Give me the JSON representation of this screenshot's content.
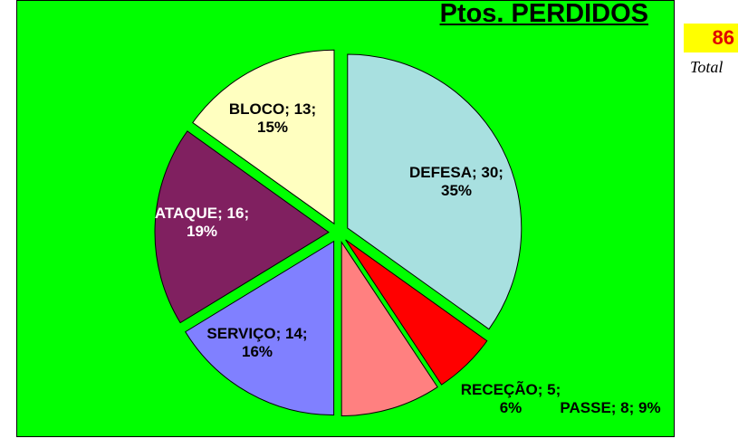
{
  "chart_data": {
    "type": "pie",
    "title": "Ptos. PERDIDOS",
    "categories": [
      "DEFESA",
      "RECEÇÃO",
      "PASSE",
      "SERVIÇO",
      "ATAQUE",
      "BLOCO"
    ],
    "values": [
      30,
      5,
      8,
      14,
      16,
      13
    ],
    "value_labels": [
      "DEFESA; 30; 35%",
      "RECEÇÃO; 5; 6%",
      "PASSE; 8; 9%",
      "SERVIÇO; 14; 16%",
      "ATAQUE; 16; 19%",
      "BLOCO; 13; 15%"
    ],
    "colors": [
      "#a8e0e0",
      "#ff0000",
      "#ff8080",
      "#8080ff",
      "#802060",
      "#ffffc0"
    ],
    "total": 86,
    "total_label": "Total"
  }
}
